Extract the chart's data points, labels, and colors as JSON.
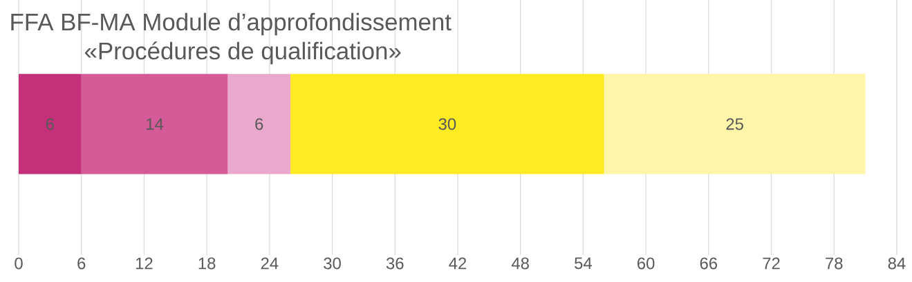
{
  "chart_data": {
    "type": "bar",
    "orientation": "horizontal",
    "stacked": true,
    "title": "FFA BF-MA Module d’approfondissement",
    "subtitle": "«Procédures de qualification»",
    "categories": [
      null
    ],
    "series": [
      {
        "color": "#c4307a",
        "values": [
          6
        ]
      },
      {
        "color": "#d55a98",
        "values": [
          14
        ]
      },
      {
        "color": "#eaa8cc",
        "values": [
          6
        ]
      },
      {
        "color": "#ffeb22",
        "values": [
          30
        ]
      },
      {
        "color": "#fff5a8",
        "values": [
          25
        ]
      }
    ],
    "xlim": [
      0,
      84
    ],
    "xticks": [
      0,
      6,
      12,
      18,
      24,
      30,
      36,
      42,
      48,
      54,
      60,
      66,
      72,
      78,
      84
    ],
    "grid": "x",
    "data_labels": true
  }
}
